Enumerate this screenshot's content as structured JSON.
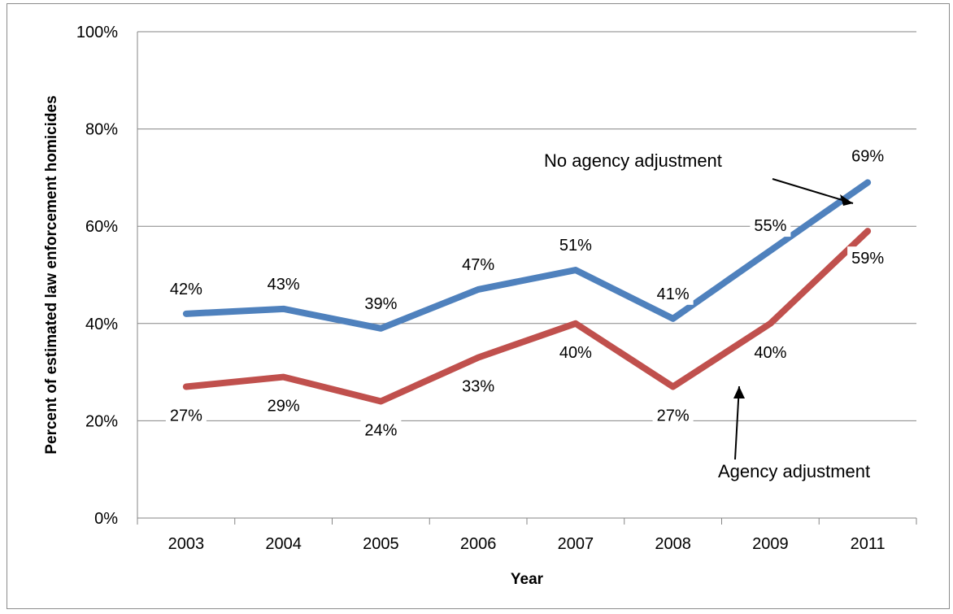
{
  "chart_data": {
    "type": "line",
    "title": "",
    "xlabel": "Year",
    "ylabel": "Percent of estimated law enforcement homicides",
    "categories": [
      "2003",
      "2004",
      "2005",
      "2006",
      "2007",
      "2008",
      "2009",
      "2011"
    ],
    "ylim": [
      0,
      100
    ],
    "yticks": [
      "0%",
      "20%",
      "40%",
      "60%",
      "80%",
      "100%"
    ],
    "grid": true,
    "series": [
      {
        "name": "No agency adjustment",
        "color": "#4f81bd",
        "values": [
          42,
          43,
          39,
          47,
          51,
          41,
          55,
          69
        ],
        "labels": [
          "42%",
          "43%",
          "39%",
          "47%",
          "51%",
          "41%",
          "55%",
          "69%"
        ]
      },
      {
        "name": "Agency adjustment",
        "color": "#c0504d",
        "values": [
          27,
          29,
          24,
          33,
          40,
          27,
          40,
          59
        ],
        "labels": [
          "27%",
          "29%",
          "24%",
          "33%",
          "40%",
          "27%",
          "40%",
          "59%"
        ]
      }
    ],
    "annotations": [
      {
        "text": "No agency adjustment",
        "target_series": 0
      },
      {
        "text": "Agency adjustment",
        "target_series": 1
      }
    ]
  }
}
